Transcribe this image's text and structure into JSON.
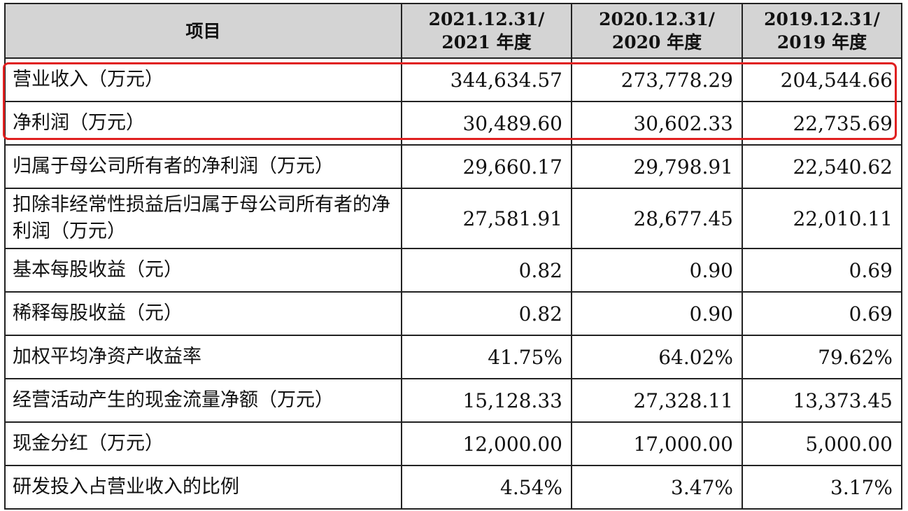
{
  "header": {
    "item": "项目",
    "col1_line1": "2021.12.31/",
    "col1_line2": "2021 年度",
    "col2_line1": "2020.12.31/",
    "col2_line2": "2020 年度",
    "col3_line1": "2019.12.31/",
    "col3_line2": "2019 年度"
  },
  "rows": [
    {
      "label": "营业收入（万元）",
      "v2021": "344,634.57",
      "v2020": "273,778.29",
      "v2019": "204,544.66"
    },
    {
      "label": "净利润（万元）",
      "v2021": "30,489.60",
      "v2020": "30,602.33",
      "v2019": "22,735.69"
    },
    {
      "label": "归属于母公司所有者的净利润（万元）",
      "v2021": "29,660.17",
      "v2020": "29,798.91",
      "v2019": "22,540.62"
    },
    {
      "label": "扣除非经常性损益后归属于母公司所有者的净利润（万元）",
      "v2021": "27,581.91",
      "v2020": "28,677.45",
      "v2019": "22,010.11"
    },
    {
      "label": "基本每股收益（元）",
      "v2021": "0.82",
      "v2020": "0.90",
      "v2019": "0.69"
    },
    {
      "label": "稀释每股收益（元）",
      "v2021": "0.82",
      "v2020": "0.90",
      "v2019": "0.69"
    },
    {
      "label": "加权平均净资产收益率",
      "v2021": "41.75%",
      "v2020": "64.02%",
      "v2019": "79.62%"
    },
    {
      "label": "经营活动产生的现金流量净额（万元）",
      "v2021": "15,128.33",
      "v2020": "27,328.11",
      "v2019": "13,373.45"
    },
    {
      "label": "现金分红（万元）",
      "v2021": "12,000.00",
      "v2020": "17,000.00",
      "v2019": "5,000.00"
    },
    {
      "label": "研发投入占营业收入的比例",
      "v2021": "4.54%",
      "v2020": "3.47%",
      "v2019": "3.17%"
    }
  ],
  "highlight": {
    "color": "#e02020"
  }
}
